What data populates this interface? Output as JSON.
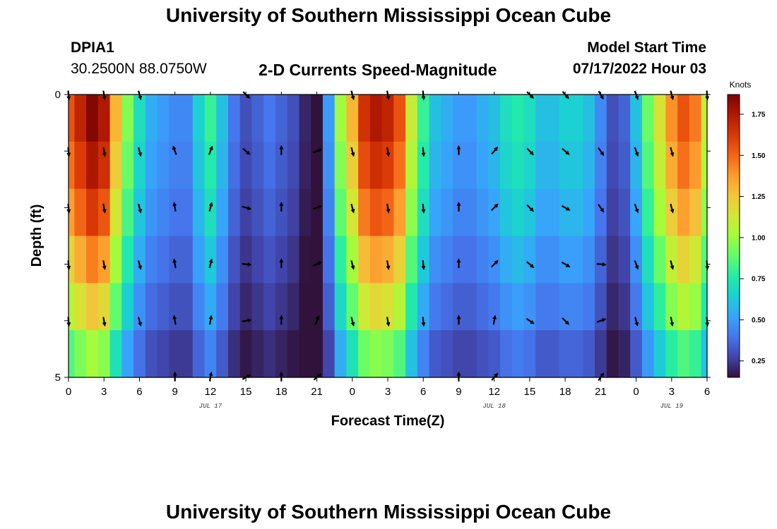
{
  "page": {
    "title": "University of Southern Mississippi Ocean Cube",
    "footer_title": "University of Southern Mississippi Ocean Cube",
    "station_id": "DPIA1",
    "coords": "30.2500N  88.0750W",
    "subtitle": "2-D Currents Speed-Magnitude",
    "model_start_label": "Model Start Time",
    "model_start_value": "07/17/2022 Hour 03"
  },
  "chart_data": {
    "type": "heatmap",
    "title": "2-D Currents Speed-Magnitude",
    "xlabel": "Forecast Time(Z)",
    "ylabel": "Depth (ft)",
    "colorbar_label": "Knots",
    "colorbar_ticks": [
      0.25,
      0.5,
      0.75,
      1.0,
      1.25,
      1.5,
      1.75
    ],
    "colorbar_tick_labels": [
      "0.25",
      "0.50",
      "0.75",
      "1.00",
      "1.25",
      "1.50",
      "1.75"
    ],
    "color_range": [
      0.15,
      1.87
    ],
    "colormap": [
      "#30123b",
      "#4145ab",
      "#4675ed",
      "#39a2fc",
      "#1bcfd4",
      "#24eca6",
      "#61fc6c",
      "#a4fc3b",
      "#d1e834",
      "#f3c63a",
      "#fe9b2d",
      "#f36315",
      "#d93806",
      "#b11901",
      "#7a0402"
    ],
    "x_hours": [
      0,
      3,
      6,
      9,
      12,
      15,
      18,
      21,
      24,
      27,
      30,
      33,
      36,
      39,
      42,
      45,
      48,
      51,
      54
    ],
    "x_tick_labels": [
      "0",
      "3",
      "6",
      "9",
      "12",
      "15",
      "18",
      "21",
      "0",
      "3",
      "6",
      "9",
      "12",
      "15",
      "18",
      "21",
      "0",
      "3",
      "6"
    ],
    "date_labels": [
      {
        "hour": 12,
        "text": "JUL 17"
      },
      {
        "hour": 36,
        "text": "JUL 18"
      },
      {
        "hour": 51,
        "text": "JUL 19"
      }
    ],
    "y_tick_labels": [
      {
        "depth": 0,
        "text": "0"
      },
      {
        "depth": 5,
        "text": "5"
      }
    ],
    "ylim": [
      0,
      5
    ],
    "xlim": [
      0,
      54
    ],
    "depth_levels": [
      0,
      1,
      2,
      3,
      4,
      5
    ],
    "speed_profile_hours": [
      0,
      1,
      2,
      3,
      4,
      5,
      6,
      7,
      8,
      9,
      10,
      11,
      12,
      13,
      14,
      15,
      16,
      17,
      18,
      19,
      20,
      21,
      22,
      23,
      24,
      25,
      26,
      27,
      28,
      29,
      30,
      31,
      32,
      33,
      34,
      35,
      36,
      37,
      38,
      39,
      40,
      41,
      42,
      43,
      44,
      45,
      46,
      47,
      48,
      49,
      50,
      51,
      52,
      53,
      54
    ],
    "speed_profile_surface": [
      1.55,
      1.7,
      1.85,
      1.75,
      1.3,
      0.95,
      0.7,
      0.55,
      0.5,
      0.45,
      0.45,
      0.65,
      0.8,
      0.6,
      0.4,
      0.3,
      0.35,
      0.4,
      0.35,
      0.3,
      0.2,
      0.15,
      0.5,
      1.0,
      1.3,
      1.65,
      1.75,
      1.7,
      1.55,
      1.1,
      0.8,
      0.6,
      0.55,
      0.5,
      0.5,
      0.55,
      0.6,
      0.7,
      0.75,
      0.7,
      0.6,
      0.6,
      0.65,
      0.65,
      0.6,
      0.45,
      0.3,
      0.35,
      0.6,
      0.9,
      1.15,
      1.4,
      1.55,
      1.45,
      1.1
    ],
    "depth_factor": [
      1.0,
      0.95,
      0.88,
      0.78,
      0.68,
      0.55
    ],
    "vectors": {
      "depths": [
        0,
        1,
        2,
        3,
        4,
        5
      ],
      "hours": [
        0,
        3,
        6,
        9,
        12,
        15,
        18,
        21,
        24,
        27,
        30,
        33,
        36,
        39,
        42,
        45,
        48,
        51,
        54
      ],
      "directions_deg": [
        [
          175,
          170,
          165,
          null,
          null,
          135,
          null,
          null,
          165,
          170,
          175,
          null,
          null,
          135,
          140,
          150,
          160,
          165,
          175
        ],
        [
          175,
          170,
          165,
          340,
          20,
          130,
          0,
          70,
          165,
          170,
          175,
          0,
          40,
          135,
          130,
          145,
          160,
          165,
          null
        ],
        [
          175,
          170,
          165,
          350,
          15,
          105,
          0,
          70,
          165,
          170,
          175,
          0,
          45,
          135,
          120,
          145,
          160,
          165,
          null
        ],
        [
          175,
          170,
          165,
          350,
          15,
          95,
          0,
          65,
          165,
          170,
          175,
          0,
          45,
          130,
          120,
          95,
          160,
          165,
          175
        ],
        [
          175,
          170,
          165,
          350,
          10,
          80,
          0,
          20,
          165,
          170,
          175,
          0,
          10,
          125,
          135,
          70,
          165,
          170,
          175
        ],
        [
          null,
          null,
          null,
          0,
          10,
          60,
          0,
          50,
          null,
          null,
          null,
          0,
          40,
          null,
          null,
          35,
          null,
          null,
          null
        ]
      ]
    },
    "grid": false
  }
}
